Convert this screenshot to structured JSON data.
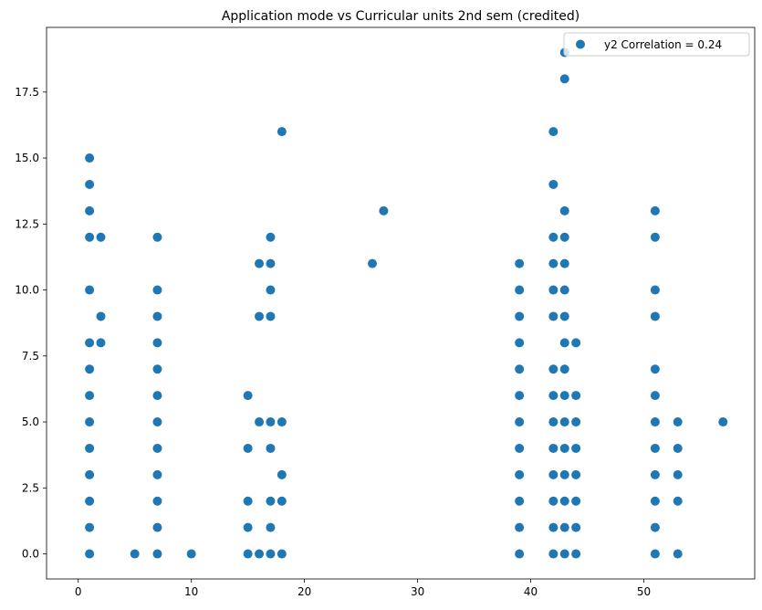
{
  "chart_data": {
    "type": "scatter",
    "title": "Application mode vs Curricular units 2nd sem (credited)",
    "xlabel": "",
    "ylabel": "",
    "xlim": [
      -2.8,
      59.8
    ],
    "ylim": [
      -0.95,
      19.95
    ],
    "xticks": [
      0,
      10,
      20,
      30,
      40,
      50
    ],
    "yticks": [
      0.0,
      2.5,
      5.0,
      7.5,
      10.0,
      12.5,
      15.0,
      17.5
    ],
    "ytick_labels": [
      "0.0",
      "2.5",
      "5.0",
      "7.5",
      "10.0",
      "12.5",
      "15.0",
      "17.5"
    ],
    "grid": false,
    "legend": {
      "placement": "top-right",
      "label": "y2 Correlation = 0.24"
    },
    "marker_color": "#1f77b4",
    "points": [
      [
        1,
        0
      ],
      [
        1,
        1
      ],
      [
        1,
        2
      ],
      [
        1,
        3
      ],
      [
        1,
        4
      ],
      [
        1,
        5
      ],
      [
        1,
        6
      ],
      [
        1,
        7
      ],
      [
        1,
        8
      ],
      [
        1,
        10
      ],
      [
        1,
        12
      ],
      [
        1,
        13
      ],
      [
        1,
        14
      ],
      [
        1,
        15
      ],
      [
        2,
        8
      ],
      [
        2,
        9
      ],
      [
        2,
        12
      ],
      [
        5,
        0
      ],
      [
        7,
        0
      ],
      [
        7,
        1
      ],
      [
        7,
        2
      ],
      [
        7,
        3
      ],
      [
        7,
        4
      ],
      [
        7,
        5
      ],
      [
        7,
        6
      ],
      [
        7,
        7
      ],
      [
        7,
        8
      ],
      [
        7,
        9
      ],
      [
        7,
        10
      ],
      [
        7,
        12
      ],
      [
        10,
        0
      ],
      [
        15,
        0
      ],
      [
        15,
        1
      ],
      [
        15,
        2
      ],
      [
        15,
        4
      ],
      [
        15,
        6
      ],
      [
        16,
        0
      ],
      [
        16,
        5
      ],
      [
        16,
        9
      ],
      [
        16,
        11
      ],
      [
        17,
        0
      ],
      [
        17,
        1
      ],
      [
        17,
        2
      ],
      [
        17,
        4
      ],
      [
        17,
        5
      ],
      [
        17,
        9
      ],
      [
        17,
        10
      ],
      [
        17,
        11
      ],
      [
        17,
        12
      ],
      [
        18,
        0
      ],
      [
        18,
        2
      ],
      [
        18,
        3
      ],
      [
        18,
        5
      ],
      [
        18,
        16
      ],
      [
        26,
        11
      ],
      [
        27,
        13
      ],
      [
        39,
        0
      ],
      [
        39,
        1
      ],
      [
        39,
        2
      ],
      [
        39,
        3
      ],
      [
        39,
        4
      ],
      [
        39,
        5
      ],
      [
        39,
        6
      ],
      [
        39,
        7
      ],
      [
        39,
        8
      ],
      [
        39,
        9
      ],
      [
        39,
        10
      ],
      [
        39,
        11
      ],
      [
        42,
        0
      ],
      [
        42,
        1
      ],
      [
        42,
        2
      ],
      [
        42,
        3
      ],
      [
        42,
        4
      ],
      [
        42,
        5
      ],
      [
        42,
        6
      ],
      [
        42,
        7
      ],
      [
        42,
        9
      ],
      [
        42,
        10
      ],
      [
        42,
        11
      ],
      [
        42,
        12
      ],
      [
        42,
        14
      ],
      [
        42,
        16
      ],
      [
        43,
        0
      ],
      [
        43,
        1
      ],
      [
        43,
        2
      ],
      [
        43,
        3
      ],
      [
        43,
        4
      ],
      [
        43,
        5
      ],
      [
        43,
        6
      ],
      [
        43,
        7
      ],
      [
        43,
        8
      ],
      [
        43,
        9
      ],
      [
        43,
        10
      ],
      [
        43,
        11
      ],
      [
        43,
        12
      ],
      [
        43,
        13
      ],
      [
        43,
        18
      ],
      [
        43,
        19
      ],
      [
        44,
        0
      ],
      [
        44,
        1
      ],
      [
        44,
        2
      ],
      [
        44,
        3
      ],
      [
        44,
        4
      ],
      [
        44,
        5
      ],
      [
        44,
        6
      ],
      [
        44,
        8
      ],
      [
        51,
        0
      ],
      [
        51,
        1
      ],
      [
        51,
        2
      ],
      [
        51,
        3
      ],
      [
        51,
        4
      ],
      [
        51,
        5
      ],
      [
        51,
        6
      ],
      [
        51,
        7
      ],
      [
        51,
        9
      ],
      [
        51,
        10
      ],
      [
        51,
        12
      ],
      [
        51,
        13
      ],
      [
        53,
        0
      ],
      [
        53,
        2
      ],
      [
        53,
        3
      ],
      [
        53,
        4
      ],
      [
        53,
        5
      ],
      [
        57,
        5
      ]
    ]
  }
}
